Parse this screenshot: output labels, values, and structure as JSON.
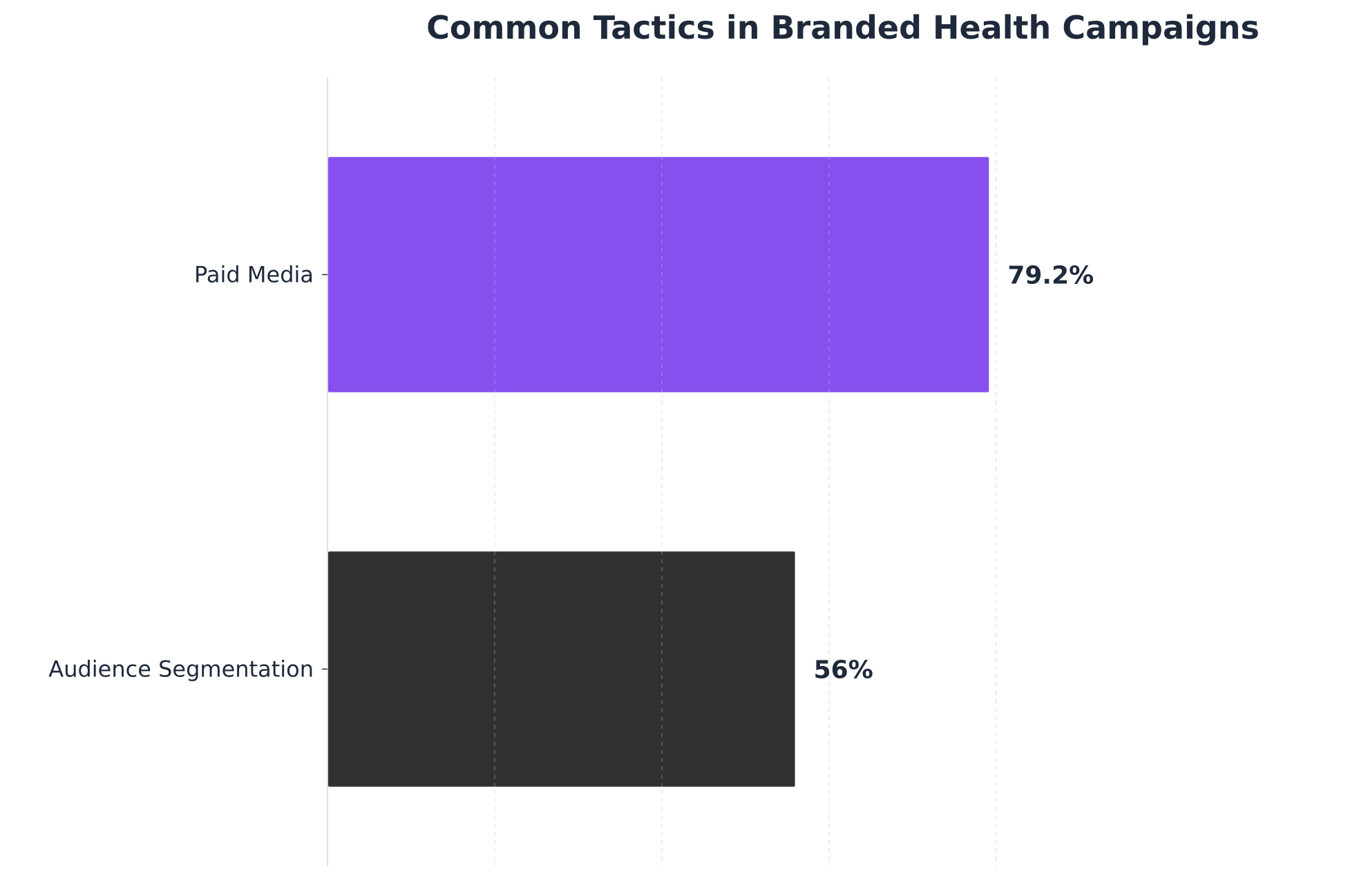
{
  "chart_data": {
    "type": "bar",
    "orientation": "horizontal",
    "title": "Common Tactics in Branded Health Campaigns",
    "xlabel": "",
    "ylabel": "",
    "categories": [
      "Paid Media",
      "Audience Segmentation"
    ],
    "values": [
      79.2,
      56
    ],
    "value_labels": [
      "79.2%",
      "56%"
    ],
    "colors": [
      "#874fee",
      "#313131"
    ],
    "xlim": [
      0,
      100
    ],
    "grid": true,
    "legend": "none"
  }
}
